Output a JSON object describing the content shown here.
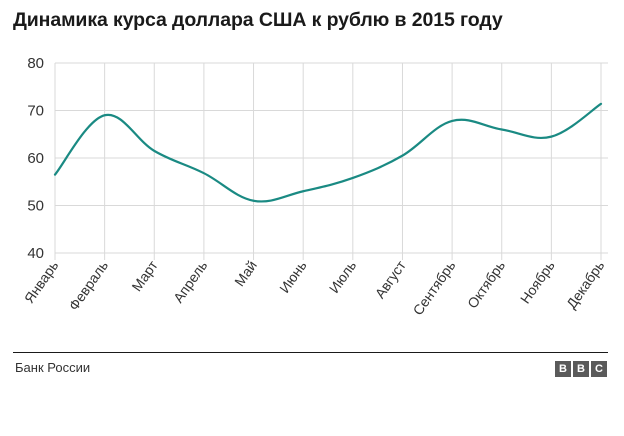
{
  "title": "Динамика курса доллара США к рублю в 2015 году",
  "source": "Банк России",
  "logo": {
    "letters": [
      "B",
      "B",
      "C"
    ]
  },
  "colors": {
    "line": "#1a8a83",
    "grid": "#d9d9d9",
    "text": "#1a1a1a"
  },
  "chart_data": {
    "type": "line",
    "title": "Динамика курса доллара США к рублю в 2015 году",
    "categories": [
      "Январь",
      "Февраль",
      "Март",
      "Апрель",
      "Май",
      "Июнь",
      "Июль",
      "Август",
      "Сентябрь",
      "Октябрь",
      "Ноябрь",
      "Декабрь"
    ],
    "series": [
      {
        "values": [
          56.5,
          69.0,
          61.5,
          56.8,
          51.0,
          53.0,
          55.8,
          60.5,
          67.8,
          66.0,
          64.5,
          71.4
        ]
      }
    ],
    "ylim": [
      40,
      80
    ],
    "yticks": [
      40,
      50,
      60,
      70,
      80
    ],
    "grid": true,
    "xlabel": "",
    "ylabel": ""
  }
}
